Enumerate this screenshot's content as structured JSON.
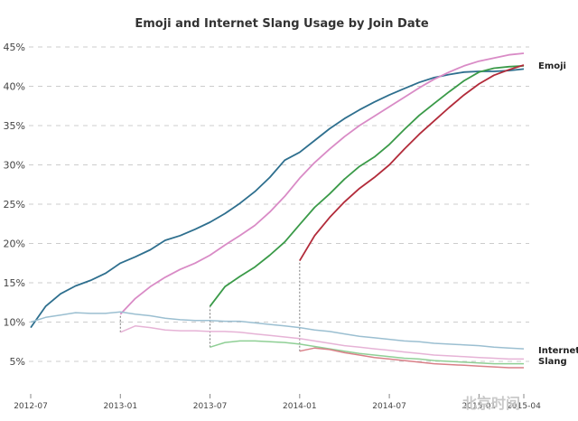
{
  "chart_data": {
    "type": "line",
    "title": "Emoji and Internet Slang Usage by Join Date",
    "xlabel": "",
    "ylabel": "",
    "x_ticks": [
      "2012-07",
      "2013-01",
      "2013-07",
      "2014-01",
      "2014-07",
      "2015-01",
      "2015-04"
    ],
    "y_ticks": [
      "5%",
      "10%",
      "15%",
      "20%",
      "25%",
      "30%",
      "35%",
      "40%",
      "45%"
    ],
    "ylim": [
      0,
      46
    ],
    "grid": "horizontal dashed",
    "annotations": [
      {
        "text": "Emoji"
      },
      {
        "text": "Internet"
      },
      {
        "text": "Slang"
      }
    ],
    "series": [
      {
        "group": "Emoji",
        "color": "#2e6f8e",
        "points": [
          [
            "2012-07",
            9.3
          ],
          [
            "2012-08",
            12.0
          ],
          [
            "2012-09",
            13.6
          ],
          [
            "2012-10",
            14.6
          ],
          [
            "2012-11",
            15.3
          ],
          [
            "2012-12",
            16.2
          ],
          [
            "2013-01",
            17.5
          ],
          [
            "2013-02",
            18.3
          ],
          [
            "2013-03",
            19.2
          ],
          [
            "2013-04",
            20.4
          ],
          [
            "2013-05",
            21.0
          ],
          [
            "2013-06",
            21.8
          ],
          [
            "2013-07",
            22.7
          ],
          [
            "2013-08",
            23.8
          ],
          [
            "2013-09",
            25.1
          ],
          [
            "2013-10",
            26.6
          ],
          [
            "2013-11",
            28.4
          ],
          [
            "2013-12",
            30.6
          ],
          [
            "2014-01",
            31.6
          ],
          [
            "2014-02",
            33.1
          ],
          [
            "2014-03",
            34.6
          ],
          [
            "2014-04",
            35.9
          ],
          [
            "2014-05",
            37.0
          ],
          [
            "2014-06",
            38.0
          ],
          [
            "2014-07",
            38.9
          ],
          [
            "2014-08",
            39.7
          ],
          [
            "2014-09",
            40.5
          ],
          [
            "2014-10",
            41.1
          ],
          [
            "2014-11",
            41.5
          ],
          [
            "2014-12",
            41.8
          ],
          [
            "2015-01",
            41.9
          ],
          [
            "2015-02",
            41.9
          ],
          [
            "2015-03",
            42.0
          ],
          [
            "2015-04",
            42.2
          ]
        ]
      },
      {
        "group": "Emoji",
        "color": "#d98bc6",
        "points": [
          [
            "2013-01",
            11.0
          ],
          [
            "2013-02",
            13.0
          ],
          [
            "2013-03",
            14.5
          ],
          [
            "2013-04",
            15.7
          ],
          [
            "2013-05",
            16.7
          ],
          [
            "2013-06",
            17.5
          ],
          [
            "2013-07",
            18.5
          ],
          [
            "2013-08",
            19.8
          ],
          [
            "2013-09",
            21.0
          ],
          [
            "2013-10",
            22.3
          ],
          [
            "2013-11",
            24.0
          ],
          [
            "2013-12",
            26.0
          ],
          [
            "2014-01",
            28.3
          ],
          [
            "2014-02",
            30.3
          ],
          [
            "2014-03",
            32.0
          ],
          [
            "2014-04",
            33.6
          ],
          [
            "2014-05",
            35.0
          ],
          [
            "2014-06",
            36.2
          ],
          [
            "2014-07",
            37.4
          ],
          [
            "2014-08",
            38.6
          ],
          [
            "2014-09",
            39.8
          ],
          [
            "2014-10",
            40.9
          ],
          [
            "2014-11",
            41.8
          ],
          [
            "2014-12",
            42.6
          ],
          [
            "2015-01",
            43.2
          ],
          [
            "2015-02",
            43.6
          ],
          [
            "2015-03",
            44.0
          ],
          [
            "2015-04",
            44.2
          ]
        ]
      },
      {
        "group": "Emoji",
        "color": "#3a9a48",
        "points": [
          [
            "2013-07",
            12.0
          ],
          [
            "2013-08",
            14.5
          ],
          [
            "2013-09",
            15.8
          ],
          [
            "2013-10",
            17.0
          ],
          [
            "2013-11",
            18.5
          ],
          [
            "2013-12",
            20.2
          ],
          [
            "2014-01",
            22.4
          ],
          [
            "2014-02",
            24.6
          ],
          [
            "2014-03",
            26.3
          ],
          [
            "2014-04",
            28.2
          ],
          [
            "2014-05",
            29.8
          ],
          [
            "2014-06",
            31.0
          ],
          [
            "2014-07",
            32.6
          ],
          [
            "2014-08",
            34.5
          ],
          [
            "2014-09",
            36.3
          ],
          [
            "2014-10",
            37.8
          ],
          [
            "2014-11",
            39.3
          ],
          [
            "2014-12",
            40.7
          ],
          [
            "2015-01",
            41.8
          ],
          [
            "2015-02",
            42.3
          ],
          [
            "2015-03",
            42.5
          ],
          [
            "2015-04",
            42.6
          ]
        ]
      },
      {
        "group": "Emoji",
        "color": "#b22b3a",
        "points": [
          [
            "2014-01",
            17.8
          ],
          [
            "2014-02",
            21.0
          ],
          [
            "2014-03",
            23.3
          ],
          [
            "2014-04",
            25.3
          ],
          [
            "2014-05",
            27.0
          ],
          [
            "2014-06",
            28.4
          ],
          [
            "2014-07",
            30.0
          ],
          [
            "2014-08",
            32.0
          ],
          [
            "2014-09",
            33.9
          ],
          [
            "2014-10",
            35.6
          ],
          [
            "2014-11",
            37.3
          ],
          [
            "2014-12",
            38.9
          ],
          [
            "2015-01",
            40.3
          ],
          [
            "2015-02",
            41.4
          ],
          [
            "2015-03",
            42.1
          ],
          [
            "2015-04",
            42.7
          ]
        ]
      },
      {
        "group": "Internet Slang",
        "color": "#9bbfd1",
        "points": [
          [
            "2012-07",
            10.0
          ],
          [
            "2012-08",
            10.6
          ],
          [
            "2012-09",
            10.9
          ],
          [
            "2012-10",
            11.2
          ],
          [
            "2012-11",
            11.1
          ],
          [
            "2012-12",
            11.1
          ],
          [
            "2013-01",
            11.3
          ],
          [
            "2013-02",
            11.0
          ],
          [
            "2013-03",
            10.8
          ],
          [
            "2013-04",
            10.5
          ],
          [
            "2013-05",
            10.3
          ],
          [
            "2013-06",
            10.2
          ],
          [
            "2013-07",
            10.2
          ],
          [
            "2013-08",
            10.1
          ],
          [
            "2013-09",
            10.1
          ],
          [
            "2013-10",
            9.9
          ],
          [
            "2013-11",
            9.7
          ],
          [
            "2013-12",
            9.5
          ],
          [
            "2014-01",
            9.3
          ],
          [
            "2014-02",
            9.0
          ],
          [
            "2014-03",
            8.8
          ],
          [
            "2014-04",
            8.5
          ],
          [
            "2014-05",
            8.2
          ],
          [
            "2014-06",
            8.0
          ],
          [
            "2014-07",
            7.8
          ],
          [
            "2014-08",
            7.6
          ],
          [
            "2014-09",
            7.5
          ],
          [
            "2014-10",
            7.3
          ],
          [
            "2014-11",
            7.2
          ],
          [
            "2014-12",
            7.1
          ],
          [
            "2015-01",
            7.0
          ],
          [
            "2015-02",
            6.8
          ],
          [
            "2015-03",
            6.7
          ],
          [
            "2015-04",
            6.6
          ]
        ]
      },
      {
        "group": "Internet Slang",
        "color": "#e6b3d6",
        "points": [
          [
            "2013-01",
            8.7
          ],
          [
            "2013-02",
            9.5
          ],
          [
            "2013-03",
            9.3
          ],
          [
            "2013-04",
            9.0
          ],
          [
            "2013-05",
            8.9
          ],
          [
            "2013-06",
            8.9
          ],
          [
            "2013-07",
            8.8
          ],
          [
            "2013-08",
            8.8
          ],
          [
            "2013-09",
            8.7
          ],
          [
            "2013-10",
            8.5
          ],
          [
            "2013-11",
            8.3
          ],
          [
            "2013-12",
            8.1
          ],
          [
            "2014-01",
            7.9
          ],
          [
            "2014-02",
            7.6
          ],
          [
            "2014-03",
            7.3
          ],
          [
            "2014-04",
            7.0
          ],
          [
            "2014-05",
            6.8
          ],
          [
            "2014-06",
            6.6
          ],
          [
            "2014-07",
            6.4
          ],
          [
            "2014-08",
            6.2
          ],
          [
            "2014-09",
            6.0
          ],
          [
            "2014-10",
            5.8
          ],
          [
            "2014-11",
            5.7
          ],
          [
            "2014-12",
            5.6
          ],
          [
            "2015-01",
            5.5
          ],
          [
            "2015-02",
            5.4
          ],
          [
            "2015-03",
            5.3
          ],
          [
            "2015-04",
            5.3
          ]
        ]
      },
      {
        "group": "Internet Slang",
        "color": "#8fcf95",
        "points": [
          [
            "2013-07",
            6.8
          ],
          [
            "2013-08",
            7.4
          ],
          [
            "2013-09",
            7.6
          ],
          [
            "2013-10",
            7.6
          ],
          [
            "2013-11",
            7.5
          ],
          [
            "2013-12",
            7.4
          ],
          [
            "2014-01",
            7.2
          ],
          [
            "2014-02",
            6.9
          ],
          [
            "2014-03",
            6.6
          ],
          [
            "2014-04",
            6.3
          ],
          [
            "2014-05",
            6.0
          ],
          [
            "2014-06",
            5.8
          ],
          [
            "2014-07",
            5.6
          ],
          [
            "2014-08",
            5.4
          ],
          [
            "2014-09",
            5.3
          ],
          [
            "2014-10",
            5.1
          ],
          [
            "2014-11",
            5.0
          ],
          [
            "2014-12",
            4.9
          ],
          [
            "2015-01",
            4.8
          ],
          [
            "2015-02",
            4.7
          ],
          [
            "2015-03",
            4.7
          ],
          [
            "2015-04",
            4.7
          ]
        ]
      },
      {
        "group": "Internet Slang",
        "color": "#d98088",
        "points": [
          [
            "2014-01",
            6.3
          ],
          [
            "2014-02",
            6.7
          ],
          [
            "2014-03",
            6.5
          ],
          [
            "2014-04",
            6.1
          ],
          [
            "2014-05",
            5.8
          ],
          [
            "2014-06",
            5.5
          ],
          [
            "2014-07",
            5.3
          ],
          [
            "2014-08",
            5.1
          ],
          [
            "2014-09",
            4.9
          ],
          [
            "2014-10",
            4.7
          ],
          [
            "2014-11",
            4.6
          ],
          [
            "2014-12",
            4.5
          ],
          [
            "2015-01",
            4.4
          ],
          [
            "2015-02",
            4.3
          ],
          [
            "2015-03",
            4.2
          ],
          [
            "2015-04",
            4.2
          ]
        ]
      }
    ],
    "connectors": [
      {
        "x": "2013-01",
        "from": 8.7,
        "to": 11.0
      },
      {
        "x": "2013-07",
        "from": 6.8,
        "to": 12.0
      },
      {
        "x": "2014-01",
        "from": 6.3,
        "to": 17.8
      }
    ],
    "grid_color": "#cccccc"
  },
  "watermark": "北京时间"
}
